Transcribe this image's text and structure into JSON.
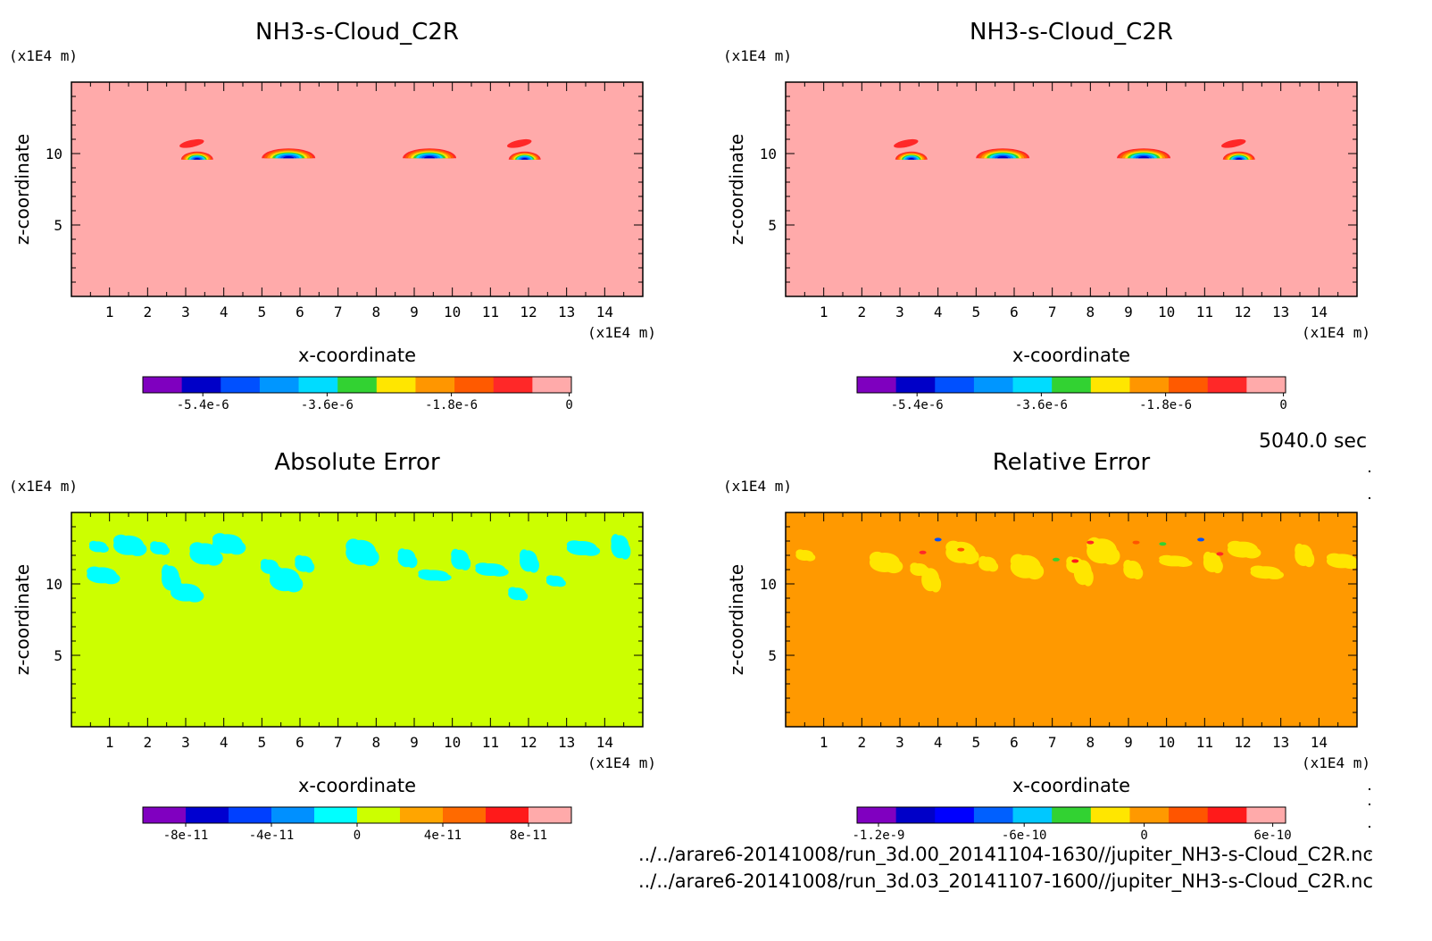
{
  "time_label": "5040.0 sec",
  "files": [
    "../../arare6-20141008/run_3d.00_20141104-1630//jupiter_NH3-s-Cloud_C2R.nc",
    "../../arare6-20141008/run_3d.03_20141107-1600//jupiter_NH3-s-Cloud_C2R.nc"
  ],
  "chart_data": [
    {
      "type": "heatmap",
      "title": "NH3-s-Cloud_C2R",
      "xlabel": "x-coordinate",
      "ylabel": "z-coordinate",
      "x_unit": "(x1E4 m)",
      "y_unit": "(x1E4 m)",
      "xlim": [
        0,
        15
      ],
      "ylim": [
        0,
        15
      ],
      "x_ticks": [
        "1",
        "2",
        "3",
        "4",
        "5",
        "6",
        "7",
        "8",
        "9",
        "10",
        "11",
        "12",
        "13",
        "14"
      ],
      "y_ticks": [
        "5",
        "10"
      ],
      "background_color": "#ffaaaa",
      "colorbar": {
        "colors": [
          "#7f00bf",
          "#0000c8",
          "#0050ff",
          "#0096ff",
          "#00dcff",
          "#32d232",
          "#ffe600",
          "#ff9600",
          "#ff5a00",
          "#ff2828",
          "#ffaaaa"
        ],
        "tick_labels": [
          "-5.4e-6",
          "-3.6e-6",
          "-1.8e-6",
          "0"
        ]
      },
      "features": [
        {
          "kind": "cloud_with_red_cap",
          "x": 3.3,
          "z": 9.7
        },
        {
          "kind": "cloud",
          "x": 5.7,
          "z": 9.8
        },
        {
          "kind": "cloud",
          "x": 9.4,
          "z": 9.8
        },
        {
          "kind": "cloud_with_red_cap",
          "x": 11.9,
          "z": 9.7
        }
      ]
    },
    {
      "type": "heatmap",
      "title": "NH3-s-Cloud_C2R",
      "xlabel": "x-coordinate",
      "ylabel": "z-coordinate",
      "x_unit": "(x1E4 m)",
      "y_unit": "(x1E4 m)",
      "xlim": [
        0,
        15
      ],
      "ylim": [
        0,
        15
      ],
      "x_ticks": [
        "1",
        "2",
        "3",
        "4",
        "5",
        "6",
        "7",
        "8",
        "9",
        "10",
        "11",
        "12",
        "13",
        "14"
      ],
      "y_ticks": [
        "5",
        "10"
      ],
      "background_color": "#ffaaaa",
      "colorbar": {
        "colors": [
          "#7f00bf",
          "#0000c8",
          "#0050ff",
          "#0096ff",
          "#00dcff",
          "#32d232",
          "#ffe600",
          "#ff9600",
          "#ff5a00",
          "#ff2828",
          "#ffaaaa"
        ],
        "tick_labels": [
          "-5.4e-6",
          "-3.6e-6",
          "-1.8e-6",
          "0"
        ]
      },
      "features": [
        {
          "kind": "cloud_with_red_cap",
          "x": 3.3,
          "z": 9.7
        },
        {
          "kind": "cloud",
          "x": 5.7,
          "z": 9.8
        },
        {
          "kind": "cloud",
          "x": 9.4,
          "z": 9.8
        },
        {
          "kind": "cloud_with_red_cap",
          "x": 11.9,
          "z": 9.7
        }
      ]
    },
    {
      "type": "heatmap",
      "title": "Absolute Error",
      "xlabel": "x-coordinate",
      "ylabel": "z-coordinate",
      "x_unit": "(x1E4 m)",
      "y_unit": "(x1E4 m)",
      "xlim": [
        0,
        15
      ],
      "ylim": [
        0,
        15
      ],
      "x_ticks": [
        "1",
        "2",
        "3",
        "4",
        "5",
        "6",
        "7",
        "8",
        "9",
        "10",
        "11",
        "12",
        "13",
        "14"
      ],
      "y_ticks": [
        "5",
        "10"
      ],
      "background_color": "#ccff00",
      "patch_color": "#00ffff",
      "colorbar": {
        "colors": [
          "#8000c0",
          "#0000d0",
          "#0040ff",
          "#0090ff",
          "#00ffff",
          "#ccff00",
          "#ffa500",
          "#ff6a00",
          "#ff1a1a",
          "#ffaaaa"
        ],
        "tick_labels": [
          "-8e-11",
          "-4e-11",
          "0",
          "4e-11",
          "8e-11"
        ]
      },
      "patches": [
        {
          "x": 0.7,
          "z": 12.6
        },
        {
          "x": 1.5,
          "z": 12.7
        },
        {
          "x": 2.3,
          "z": 12.5
        },
        {
          "x": 3.5,
          "z": 12.1
        },
        {
          "x": 5.2,
          "z": 11.2
        },
        {
          "x": 5.6,
          "z": 10.3
        },
        {
          "x": 6.1,
          "z": 11.4
        },
        {
          "x": 7.6,
          "z": 12.2
        },
        {
          "x": 8.8,
          "z": 11.8
        },
        {
          "x": 9.5,
          "z": 10.6
        },
        {
          "x": 10.2,
          "z": 11.7
        },
        {
          "x": 11.0,
          "z": 11.0
        },
        {
          "x": 12.0,
          "z": 11.6
        },
        {
          "x": 13.4,
          "z": 12.5
        },
        {
          "x": 14.4,
          "z": 12.6
        },
        {
          "x": 0.8,
          "z": 10.6
        },
        {
          "x": 2.6,
          "z": 10.4
        },
        {
          "x": 3.0,
          "z": 9.4
        },
        {
          "x": 12.7,
          "z": 10.2
        },
        {
          "x": 4.1,
          "z": 12.8
        },
        {
          "x": 11.7,
          "z": 9.3
        }
      ]
    },
    {
      "type": "heatmap",
      "title": "Relative Error",
      "xlabel": "x-coordinate",
      "ylabel": "z-coordinate",
      "x_unit": "(x1E4 m)",
      "y_unit": "(x1E4 m)",
      "xlim": [
        0,
        15
      ],
      "ylim": [
        0,
        15
      ],
      "x_ticks": [
        "1",
        "2",
        "3",
        "4",
        "5",
        "6",
        "7",
        "8",
        "9",
        "10",
        "11",
        "12",
        "13",
        "14"
      ],
      "y_ticks": [
        "5",
        "10"
      ],
      "background_color": "#ff9900",
      "patch_color": "#ffe600",
      "colorbar": {
        "colors": [
          "#8000c0",
          "#0000c8",
          "#0000ff",
          "#0060ff",
          "#00c8ff",
          "#32d232",
          "#ffe600",
          "#ff9900",
          "#ff5500",
          "#ff1a1a",
          "#ffaaaa"
        ],
        "tick_labels": [
          "-1.2e-9",
          "-6e-10",
          "0",
          "6e-10"
        ]
      },
      "patches": [
        {
          "x": 0.5,
          "z": 12.0
        },
        {
          "x": 2.6,
          "z": 11.5
        },
        {
          "x": 3.5,
          "z": 11.0
        },
        {
          "x": 4.6,
          "z": 12.2
        },
        {
          "x": 5.3,
          "z": 11.4
        },
        {
          "x": 6.3,
          "z": 11.2
        },
        {
          "x": 7.6,
          "z": 11.3
        },
        {
          "x": 8.3,
          "z": 12.3
        },
        {
          "x": 9.1,
          "z": 11.0
        },
        {
          "x": 10.2,
          "z": 11.6
        },
        {
          "x": 11.2,
          "z": 11.5
        },
        {
          "x": 12.6,
          "z": 10.8
        },
        {
          "x": 13.6,
          "z": 12.0
        },
        {
          "x": 14.6,
          "z": 11.6
        },
        {
          "x": 3.8,
          "z": 10.3
        },
        {
          "x": 12.0,
          "z": 12.4
        },
        {
          "x": 7.8,
          "z": 10.8
        }
      ],
      "specks": [
        {
          "x": 4.0,
          "z": 13.1,
          "color": "#0050ff"
        },
        {
          "x": 3.6,
          "z": 12.2,
          "color": "#ff2828"
        },
        {
          "x": 4.6,
          "z": 12.4,
          "color": "#ff5500"
        },
        {
          "x": 7.1,
          "z": 11.7,
          "color": "#32d232"
        },
        {
          "x": 7.6,
          "z": 11.6,
          "color": "#ff1a1a"
        },
        {
          "x": 8.0,
          "z": 12.9,
          "color": "#ff2828"
        },
        {
          "x": 10.9,
          "z": 13.1,
          "color": "#0050ff"
        },
        {
          "x": 11.4,
          "z": 12.1,
          "color": "#ff2828"
        },
        {
          "x": 9.2,
          "z": 12.9,
          "color": "#ff5500"
        },
        {
          "x": 9.9,
          "z": 12.8,
          "color": "#32d232"
        }
      ]
    }
  ]
}
